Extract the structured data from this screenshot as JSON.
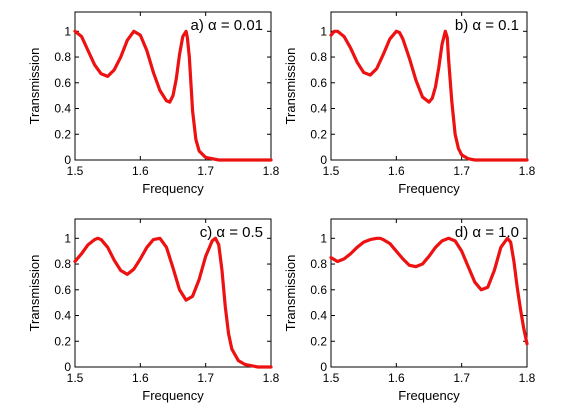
{
  "chart_data": [
    {
      "type": "line",
      "annotation": "a) α = 0.01",
      "xlabel": "Frequency",
      "ylabel": "Transmission",
      "xlim": [
        1.5,
        1.8
      ],
      "ylim": [
        0,
        1.15
      ],
      "xticks": [
        "1.5",
        "1.6",
        "1.7",
        "1.8"
      ],
      "yticks": [
        "0",
        "0.2",
        "0.4",
        "0.6",
        "0.8",
        "1"
      ],
      "grid": false,
      "color": "#ee1111",
      "series": [
        {
          "x": [
            1.5,
            1.51,
            1.52,
            1.53,
            1.54,
            1.55,
            1.56,
            1.57,
            1.58,
            1.59,
            1.6,
            1.61,
            1.62,
            1.63,
            1.64,
            1.645,
            1.65,
            1.655,
            1.66,
            1.665,
            1.67,
            1.672,
            1.675,
            1.678,
            1.68,
            1.685,
            1.69,
            1.7,
            1.71,
            1.72,
            1.75,
            1.8
          ],
          "y": [
            1.0,
            0.96,
            0.85,
            0.74,
            0.67,
            0.65,
            0.7,
            0.8,
            0.93,
            1.0,
            0.97,
            0.85,
            0.68,
            0.54,
            0.46,
            0.45,
            0.5,
            0.63,
            0.82,
            0.96,
            1.0,
            0.95,
            0.8,
            0.55,
            0.38,
            0.16,
            0.07,
            0.02,
            0.01,
            0.0,
            0.0,
            0.0
          ]
        }
      ]
    },
    {
      "type": "line",
      "annotation": "b) α = 0.1",
      "xlabel": "Frequency",
      "ylabel": "Transmission",
      "xlim": [
        1.5,
        1.8
      ],
      "ylim": [
        0,
        1.15
      ],
      "xticks": [
        "1.5",
        "1.6",
        "1.7",
        "1.8"
      ],
      "yticks": [
        "0",
        "0.2",
        "0.4",
        "0.6",
        "0.8",
        "1"
      ],
      "grid": false,
      "color": "#ee1111",
      "series": [
        {
          "x": [
            1.5,
            1.505,
            1.51,
            1.52,
            1.53,
            1.54,
            1.55,
            1.56,
            1.57,
            1.58,
            1.59,
            1.6,
            1.605,
            1.61,
            1.62,
            1.63,
            1.64,
            1.65,
            1.655,
            1.66,
            1.665,
            1.67,
            1.675,
            1.678,
            1.68,
            1.685,
            1.69,
            1.695,
            1.7,
            1.71,
            1.72,
            1.75,
            1.8
          ],
          "y": [
            0.97,
            1.0,
            1.0,
            0.96,
            0.87,
            0.76,
            0.68,
            0.66,
            0.71,
            0.82,
            0.94,
            1.0,
            0.99,
            0.94,
            0.79,
            0.62,
            0.49,
            0.45,
            0.48,
            0.57,
            0.72,
            0.9,
            1.0,
            0.95,
            0.78,
            0.45,
            0.2,
            0.09,
            0.04,
            0.01,
            0.0,
            0.0,
            0.0
          ]
        }
      ]
    },
    {
      "type": "line",
      "annotation": "c) α = 0.5",
      "xlabel": "Frequency",
      "ylabel": "Transmission",
      "xlim": [
        1.5,
        1.8
      ],
      "ylim": [
        0,
        1.15
      ],
      "xticks": [
        "1.5",
        "1.6",
        "1.7",
        "1.8"
      ],
      "yticks": [
        "0",
        "0.2",
        "0.4",
        "0.6",
        "0.8",
        "1"
      ],
      "grid": false,
      "color": "#ee1111",
      "series": [
        {
          "x": [
            1.5,
            1.51,
            1.52,
            1.53,
            1.535,
            1.54,
            1.55,
            1.56,
            1.57,
            1.58,
            1.59,
            1.6,
            1.61,
            1.62,
            1.63,
            1.64,
            1.65,
            1.66,
            1.67,
            1.68,
            1.69,
            1.7,
            1.71,
            1.715,
            1.72,
            1.725,
            1.73,
            1.735,
            1.74,
            1.75,
            1.76,
            1.77,
            1.78,
            1.8
          ],
          "y": [
            0.82,
            0.88,
            0.95,
            0.99,
            1.0,
            0.99,
            0.93,
            0.83,
            0.75,
            0.72,
            0.76,
            0.84,
            0.93,
            0.99,
            1.0,
            0.93,
            0.77,
            0.6,
            0.52,
            0.55,
            0.68,
            0.86,
            0.98,
            1.0,
            0.95,
            0.75,
            0.47,
            0.26,
            0.14,
            0.05,
            0.02,
            0.01,
            0.0,
            0.0
          ]
        }
      ]
    },
    {
      "type": "line",
      "annotation": "d) α = 1.0",
      "xlabel": "Frequency",
      "ylabel": "Transmission",
      "xlim": [
        1.5,
        1.8
      ],
      "ylim": [
        0,
        1.15
      ],
      "xticks": [
        "1.5",
        "1.6",
        "1.7",
        "1.8"
      ],
      "yticks": [
        "0",
        "0.2",
        "0.4",
        "0.6",
        "0.8",
        "1"
      ],
      "grid": false,
      "color": "#ee1111",
      "series": [
        {
          "x": [
            1.5,
            1.51,
            1.52,
            1.53,
            1.54,
            1.55,
            1.56,
            1.57,
            1.575,
            1.58,
            1.59,
            1.6,
            1.61,
            1.62,
            1.63,
            1.64,
            1.65,
            1.66,
            1.67,
            1.68,
            1.69,
            1.7,
            1.71,
            1.72,
            1.73,
            1.74,
            1.75,
            1.76,
            1.77,
            1.775,
            1.78,
            1.785,
            1.79,
            1.795,
            1.8
          ],
          "y": [
            0.85,
            0.82,
            0.84,
            0.88,
            0.93,
            0.97,
            0.99,
            1.0,
            1.0,
            0.99,
            0.96,
            0.9,
            0.84,
            0.79,
            0.78,
            0.8,
            0.86,
            0.93,
            0.98,
            1.0,
            0.98,
            0.9,
            0.78,
            0.66,
            0.6,
            0.62,
            0.75,
            0.93,
            1.0,
            0.97,
            0.82,
            0.62,
            0.45,
            0.3,
            0.18
          ]
        }
      ]
    }
  ]
}
